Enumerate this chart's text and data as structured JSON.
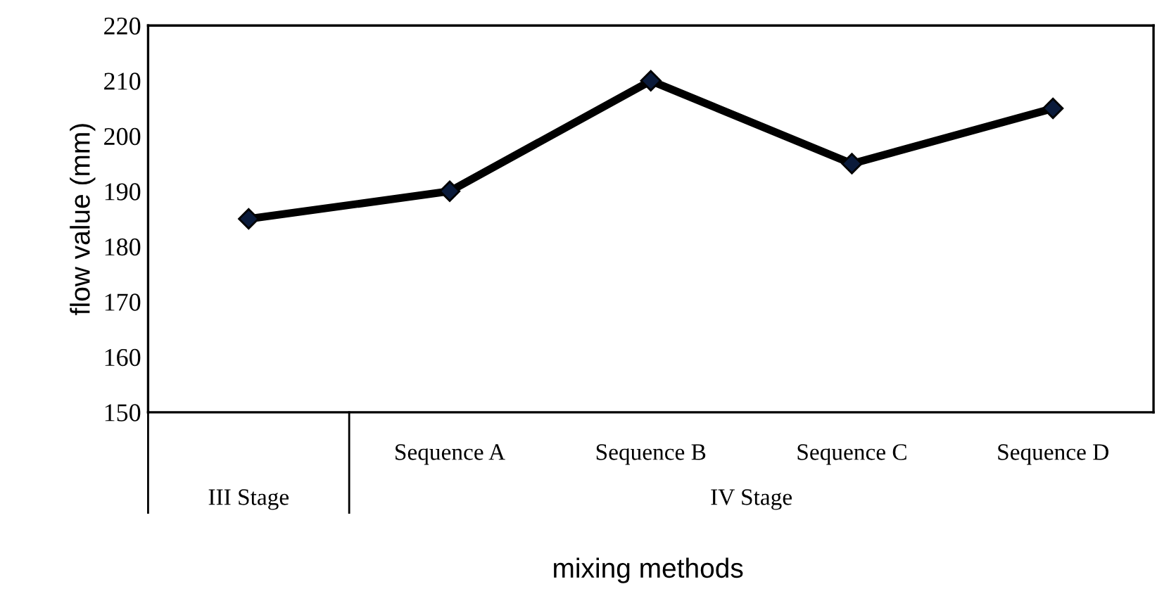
{
  "chart_data": {
    "type": "line",
    "xlabel": "mixing methods",
    "ylabel": "flow value (mm)",
    "categories": [
      null,
      "Sequence A",
      "Sequence B",
      "Sequence C",
      "Sequence D"
    ],
    "series": [
      {
        "color": "#000000",
        "values": [
          185,
          190,
          210,
          195,
          205
        ]
      }
    ],
    "ylim": [
      150,
      220
    ],
    "yticks": [
      150,
      160,
      170,
      180,
      190,
      200,
      210,
      220
    ],
    "marker": "diamond",
    "line_style": "solid",
    "grid": false,
    "legend": false,
    "annotations": [
      "III Stage",
      "IV Stage"
    ]
  }
}
